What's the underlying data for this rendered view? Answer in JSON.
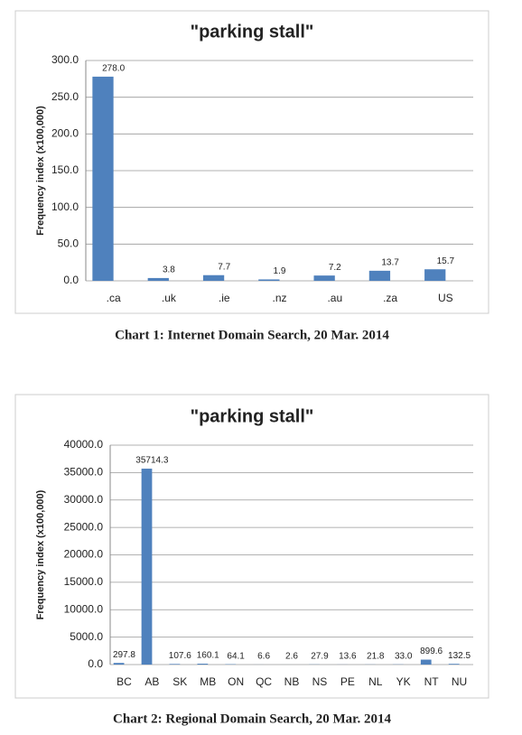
{
  "chart_data": [
    {
      "type": "bar",
      "title": "\"parking stall\"",
      "y_label": "Frequency index (x100,000)",
      "caption": "Chart 1: Internet Domain Search, 20 Mar. 2014",
      "categories": [
        ".ca",
        ".uk",
        ".ie",
        ".nz",
        ".au",
        ".za",
        "US"
      ],
      "values": [
        278.0,
        3.8,
        7.7,
        1.9,
        7.2,
        13.7,
        15.7
      ],
      "value_labels": [
        "278.0",
        "3.8",
        "7.7",
        "1.9",
        "7.2",
        "13.7",
        "15.7"
      ],
      "color": "#4f81bd",
      "ylim": [
        0,
        300
      ],
      "grid": true,
      "yticks": [
        {
          "value": 0,
          "label": "0.0"
        },
        {
          "value": 50,
          "label": "50.0"
        },
        {
          "value": 100,
          "label": "100.0"
        },
        {
          "value": 150,
          "label": "150.0"
        },
        {
          "value": 200,
          "label": "200.0"
        },
        {
          "value": 250,
          "label": "250.0"
        },
        {
          "value": 300,
          "label": "300.0"
        }
      ]
    },
    {
      "type": "bar",
      "title": "\"parking stall\"",
      "y_label": "Frequency index (x100,000)",
      "caption": "Chart 2: Regional Domain Search, 20 Mar. 2014",
      "categories": [
        "BC",
        "AB",
        "SK",
        "MB",
        "ON",
        "QC",
        "NB",
        "NS",
        "PE",
        "NL",
        "YK",
        "NT",
        "NU"
      ],
      "values": [
        297.8,
        35714.3,
        107.6,
        160.1,
        64.1,
        6.6,
        2.6,
        27.9,
        13.6,
        21.8,
        33.0,
        899.6,
        132.5
      ],
      "value_labels": [
        "297.8",
        "35714.3",
        "107.6",
        "160.1",
        "64.1",
        "6.6",
        "2.6",
        "27.9",
        "13.6",
        "21.8",
        "33.0",
        "899.6",
        "132.5"
      ],
      "color": "#4f81bd",
      "ylim": [
        0,
        40000
      ],
      "grid": true,
      "yticks": [
        {
          "value": 0,
          "label": "0.0"
        },
        {
          "value": 5000,
          "label": "5000.0"
        },
        {
          "value": 10000,
          "label": "10000.0"
        },
        {
          "value": 15000,
          "label": "15000.0"
        },
        {
          "value": 20000,
          "label": "20000.0"
        },
        {
          "value": 25000,
          "label": "25000.0"
        },
        {
          "value": 30000,
          "label": "30000.0"
        },
        {
          "value": 35000,
          "label": "35000.0"
        },
        {
          "value": 40000,
          "label": "40000.0"
        }
      ]
    }
  ]
}
